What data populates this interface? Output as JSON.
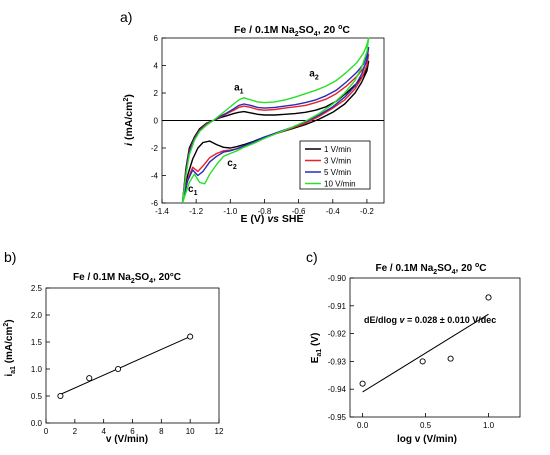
{
  "chart_data": [
    {
      "panel": "a)",
      "type": "line",
      "title": "Fe / 0.1M Na2SO4, 20 °C",
      "title_parts": {
        "main": "Fe / 0.1M Na",
        "sub1": "2",
        "mid": "SO",
        "sub2": "4",
        "end": ", 20 ",
        "deg": "o",
        "unit": "C"
      },
      "xlabel": "E (V) vs SHE",
      "xlabel_parts": {
        "pre": "E (V) ",
        "italic": "vs",
        "post": " SHE"
      },
      "ylabel": "i (mA/cm2)",
      "ylabel_parts": {
        "i": "i",
        "rest": " (mA/cm",
        "sup": "2",
        "close": ")"
      },
      "xlim": [
        -1.4,
        -0.1
      ],
      "ylim": [
        -6,
        6
      ],
      "xticks": [
        -1.4,
        -1.2,
        -1.0,
        -0.8,
        -0.6,
        -0.4,
        -0.2
      ],
      "xtick_labels": [
        "-1.4",
        "-1.2",
        "-1.0",
        "-0.8",
        "-0.6",
        "-0.4",
        "-0.2"
      ],
      "yticks": [
        -6,
        -4,
        -2,
        0,
        2,
        4,
        6
      ],
      "ytick_labels": [
        "-6",
        "-4",
        "-2",
        "0",
        "2",
        "4",
        "6"
      ],
      "zero_line": true,
      "legend_position": "lower-right",
      "annotations": [
        {
          "label": "a",
          "sub": "1",
          "x": -0.95,
          "y": 2.2
        },
        {
          "label": "a",
          "sub": "2",
          "x": -0.51,
          "y": 3.2
        },
        {
          "label": "c",
          "sub": "2",
          "x": -0.99,
          "y": -3.3
        },
        {
          "label": "c",
          "sub": "1",
          "x": -1.22,
          "y": -5.2
        }
      ],
      "series": [
        {
          "name": "1  V/min",
          "color": "#000000",
          "anodic": [
            [
              -1.28,
              -6
            ],
            [
              -1.26,
              -3.5
            ],
            [
              -1.24,
              -2.0
            ],
            [
              -1.21,
              -1.2
            ],
            [
              -1.18,
              -0.6
            ],
            [
              -1.14,
              -0.2
            ],
            [
              -1.1,
              0.0
            ],
            [
              -1.06,
              0.2
            ],
            [
              -1.02,
              0.35
            ],
            [
              -0.98,
              0.5
            ],
            [
              -0.95,
              0.6
            ],
            [
              -0.92,
              0.65
            ],
            [
              -0.88,
              0.55
            ],
            [
              -0.84,
              0.45
            ],
            [
              -0.8,
              0.4
            ],
            [
              -0.74,
              0.4
            ],
            [
              -0.68,
              0.45
            ],
            [
              -0.62,
              0.5
            ],
            [
              -0.56,
              0.6
            ],
            [
              -0.5,
              0.75
            ],
            [
              -0.44,
              1.0
            ],
            [
              -0.38,
              1.4
            ],
            [
              -0.32,
              2.0
            ],
            [
              -0.26,
              2.7
            ],
            [
              -0.22,
              3.3
            ],
            [
              -0.2,
              3.8
            ],
            [
              -0.19,
              4.3
            ]
          ],
          "cathodic": [
            [
              -0.19,
              4.3
            ],
            [
              -0.2,
              3.6
            ],
            [
              -0.23,
              2.8
            ],
            [
              -0.27,
              2.0
            ],
            [
              -0.33,
              1.2
            ],
            [
              -0.4,
              0.6
            ],
            [
              -0.48,
              0.1
            ],
            [
              -0.56,
              -0.3
            ],
            [
              -0.64,
              -0.6
            ],
            [
              -0.72,
              -0.9
            ],
            [
              -0.8,
              -1.2
            ],
            [
              -0.86,
              -1.5
            ],
            [
              -0.92,
              -1.75
            ],
            [
              -0.96,
              -1.9
            ],
            [
              -1.0,
              -2.0
            ],
            [
              -1.04,
              -1.95
            ],
            [
              -1.08,
              -1.75
            ],
            [
              -1.12,
              -1.5
            ],
            [
              -1.16,
              -1.6
            ],
            [
              -1.19,
              -2.0
            ],
            [
              -1.22,
              -2.8
            ],
            [
              -1.25,
              -4.0
            ],
            [
              -1.28,
              -6.0
            ]
          ]
        },
        {
          "name": "3  V/min",
          "color": "#e8212b",
          "anodic": [
            [
              -1.28,
              -6
            ],
            [
              -1.26,
              -3.7
            ],
            [
              -1.24,
              -2.2
            ],
            [
              -1.21,
              -1.3
            ],
            [
              -1.18,
              -0.7
            ],
            [
              -1.14,
              -0.25
            ],
            [
              -1.1,
              0.0
            ],
            [
              -1.06,
              0.25
            ],
            [
              -1.02,
              0.5
            ],
            [
              -0.98,
              0.75
            ],
            [
              -0.95,
              0.95
            ],
            [
              -0.92,
              1.05
            ],
            [
              -0.88,
              0.95
            ],
            [
              -0.84,
              0.8
            ],
            [
              -0.8,
              0.75
            ],
            [
              -0.74,
              0.8
            ],
            [
              -0.68,
              0.9
            ],
            [
              -0.62,
              1.0
            ],
            [
              -0.56,
              1.1
            ],
            [
              -0.5,
              1.3
            ],
            [
              -0.44,
              1.55
            ],
            [
              -0.38,
              1.95
            ],
            [
              -0.32,
              2.5
            ],
            [
              -0.26,
              3.2
            ],
            [
              -0.22,
              3.8
            ],
            [
              -0.2,
              4.3
            ],
            [
              -0.19,
              4.8
            ]
          ],
          "cathodic": [
            [
              -0.19,
              4.8
            ],
            [
              -0.2,
              4.0
            ],
            [
              -0.23,
              3.1
            ],
            [
              -0.27,
              2.3
            ],
            [
              -0.33,
              1.5
            ],
            [
              -0.4,
              0.9
            ],
            [
              -0.48,
              0.3
            ],
            [
              -0.56,
              -0.2
            ],
            [
              -0.64,
              -0.55
            ],
            [
              -0.72,
              -0.9
            ],
            [
              -0.8,
              -1.25
            ],
            [
              -0.86,
              -1.6
            ],
            [
              -0.92,
              -1.9
            ],
            [
              -0.96,
              -2.05
            ],
            [
              -1.0,
              -2.15
            ],
            [
              -1.04,
              -2.2
            ],
            [
              -1.08,
              -2.4
            ],
            [
              -1.12,
              -2.7
            ],
            [
              -1.16,
              -3.3
            ],
            [
              -1.19,
              -3.7
            ],
            [
              -1.22,
              -3.4
            ],
            [
              -1.25,
              -4.3
            ],
            [
              -1.28,
              -6.0
            ]
          ]
        },
        {
          "name": "5  V/min",
          "color": "#2b2bb8",
          "anodic": [
            [
              -1.28,
              -6
            ],
            [
              -1.26,
              -3.8
            ],
            [
              -1.24,
              -2.3
            ],
            [
              -1.21,
              -1.35
            ],
            [
              -1.18,
              -0.75
            ],
            [
              -1.14,
              -0.3
            ],
            [
              -1.1,
              0.0
            ],
            [
              -1.06,
              0.3
            ],
            [
              -1.02,
              0.55
            ],
            [
              -0.98,
              0.85
            ],
            [
              -0.95,
              1.1
            ],
            [
              -0.92,
              1.2
            ],
            [
              -0.88,
              1.1
            ],
            [
              -0.84,
              0.95
            ],
            [
              -0.8,
              0.9
            ],
            [
              -0.74,
              0.95
            ],
            [
              -0.68,
              1.05
            ],
            [
              -0.62,
              1.15
            ],
            [
              -0.56,
              1.3
            ],
            [
              -0.5,
              1.5
            ],
            [
              -0.44,
              1.8
            ],
            [
              -0.38,
              2.2
            ],
            [
              -0.32,
              2.8
            ],
            [
              -0.26,
              3.5
            ],
            [
              -0.22,
              4.1
            ],
            [
              -0.2,
              4.7
            ],
            [
              -0.19,
              5.3
            ]
          ],
          "cathodic": [
            [
              -0.19,
              5.3
            ],
            [
              -0.2,
              4.4
            ],
            [
              -0.23,
              3.4
            ],
            [
              -0.27,
              2.5
            ],
            [
              -0.33,
              1.7
            ],
            [
              -0.4,
              1.0
            ],
            [
              -0.48,
              0.4
            ],
            [
              -0.56,
              -0.1
            ],
            [
              -0.64,
              -0.5
            ],
            [
              -0.72,
              -0.85
            ],
            [
              -0.8,
              -1.2
            ],
            [
              -0.86,
              -1.55
            ],
            [
              -0.92,
              -1.85
            ],
            [
              -0.96,
              -2.05
            ],
            [
              -1.0,
              -2.2
            ],
            [
              -1.04,
              -2.3
            ],
            [
              -1.08,
              -2.6
            ],
            [
              -1.12,
              -3.0
            ],
            [
              -1.16,
              -3.7
            ],
            [
              -1.19,
              -4.0
            ],
            [
              -1.22,
              -3.6
            ],
            [
              -1.25,
              -4.4
            ],
            [
              -1.28,
              -6.0
            ]
          ]
        },
        {
          "name": "10 V/min",
          "color": "#28e028",
          "anodic": [
            [
              -1.28,
              -6
            ],
            [
              -1.26,
              -4.0
            ],
            [
              -1.24,
              -2.5
            ],
            [
              -1.21,
              -1.45
            ],
            [
              -1.18,
              -0.8
            ],
            [
              -1.14,
              -0.35
            ],
            [
              -1.1,
              0.0
            ],
            [
              -1.06,
              0.4
            ],
            [
              -1.02,
              0.8
            ],
            [
              -0.98,
              1.2
            ],
            [
              -0.95,
              1.5
            ],
            [
              -0.92,
              1.65
            ],
            [
              -0.88,
              1.5
            ],
            [
              -0.84,
              1.35
            ],
            [
              -0.8,
              1.3
            ],
            [
              -0.74,
              1.35
            ],
            [
              -0.68,
              1.5
            ],
            [
              -0.62,
              1.7
            ],
            [
              -0.56,
              1.95
            ],
            [
              -0.5,
              2.2
            ],
            [
              -0.44,
              2.5
            ],
            [
              -0.38,
              2.9
            ],
            [
              -0.32,
              3.5
            ],
            [
              -0.26,
              4.2
            ],
            [
              -0.22,
              4.9
            ],
            [
              -0.2,
              5.5
            ],
            [
              -0.19,
              6.0
            ]
          ],
          "cathodic": [
            [
              -0.19,
              6.0
            ],
            [
              -0.2,
              5.0
            ],
            [
              -0.23,
              3.9
            ],
            [
              -0.27,
              2.9
            ],
            [
              -0.33,
              2.0
            ],
            [
              -0.4,
              1.2
            ],
            [
              -0.48,
              0.5
            ],
            [
              -0.56,
              -0.05
            ],
            [
              -0.64,
              -0.5
            ],
            [
              -0.72,
              -0.9
            ],
            [
              -0.8,
              -1.3
            ],
            [
              -0.86,
              -1.65
            ],
            [
              -0.92,
              -1.95
            ],
            [
              -0.96,
              -2.2
            ],
            [
              -1.0,
              -2.4
            ],
            [
              -1.04,
              -2.6
            ],
            [
              -1.08,
              -3.2
            ],
            [
              -1.12,
              -3.9
            ],
            [
              -1.15,
              -4.6
            ],
            [
              -1.18,
              -4.5
            ],
            [
              -1.21,
              -3.9
            ],
            [
              -1.24,
              -4.5
            ],
            [
              -1.28,
              -6.0
            ]
          ]
        }
      ]
    },
    {
      "panel": "b)",
      "type": "scatter",
      "title": "Fe / 0.1M Na2SO4, 20°C",
      "title_parts": {
        "main": "Fe / 0.1M Na",
        "sub1": "2",
        "mid": "SO",
        "sub2": "4",
        "end": ", 20°C"
      },
      "xlabel": "v (V/min)",
      "ylabel": "ia1 (mA/cm2)",
      "ylabel_parts": {
        "i": "i",
        "sub": "a1",
        "rest": " (mA/cm",
        "sup": "2",
        "close": ")"
      },
      "xlim": [
        0,
        12
      ],
      "ylim": [
        0.0,
        2.5
      ],
      "xticks": [
        0,
        2,
        4,
        6,
        8,
        10,
        12
      ],
      "xtick_labels": [
        "0",
        "2",
        "4",
        "6",
        "8",
        "10",
        "12"
      ],
      "yticks": [
        0.0,
        0.5,
        1.0,
        1.5,
        2.0,
        2.5
      ],
      "ytick_labels": [
        "0.0",
        "0.5",
        "1.0",
        "1.5",
        "2.0",
        "2.5"
      ],
      "points": {
        "x": [
          1,
          3,
          5,
          10
        ],
        "y": [
          0.5,
          0.83,
          1.0,
          1.6
        ]
      },
      "fit_line": {
        "x": [
          1,
          10
        ],
        "y": [
          0.53,
          1.6
        ]
      }
    },
    {
      "panel": "c)",
      "type": "scatter",
      "title": "Fe / 0.1M Na2SO4, 20 °C",
      "title_parts": {
        "main": "Fe / 0.1M Na",
        "sub1": "2",
        "mid": "SO",
        "sub2": "4",
        "end": ", 20 ",
        "deg": "o",
        "unit": "C"
      },
      "xlabel": "log v (V/min)",
      "ylabel": "Ea1 (V)",
      "ylabel_parts": {
        "e": "E",
        "sub": "a1",
        "rest": " (V)"
      },
      "annotation": "dE/dlog v = 0.028 ± 0.010 V/dec",
      "annotation_parts": {
        "pre": "dE/dlog ",
        "italic": "v",
        "post": " = 0.028 ± 0.010 V/dec"
      },
      "xlim": [
        -0.1,
        1.25
      ],
      "ylim": [
        -0.95,
        -0.9
      ],
      "xticks": [
        0.0,
        0.5,
        1.0
      ],
      "xtick_labels": [
        "0.0",
        "0.5",
        "1.0"
      ],
      "yticks": [
        -0.95,
        -0.94,
        -0.93,
        -0.92,
        -0.91,
        -0.9
      ],
      "ytick_labels": [
        "-0.95",
        "-0.94",
        "-0.93",
        "-0.92",
        "-0.91",
        "-0.90"
      ],
      "points": {
        "x": [
          0.0,
          0.477,
          0.699,
          1.0
        ],
        "y": [
          -0.938,
          -0.93,
          -0.929,
          -0.907
        ]
      },
      "fit_line": {
        "x": [
          0.0,
          1.0
        ],
        "y": [
          -0.941,
          -0.913
        ]
      }
    }
  ]
}
